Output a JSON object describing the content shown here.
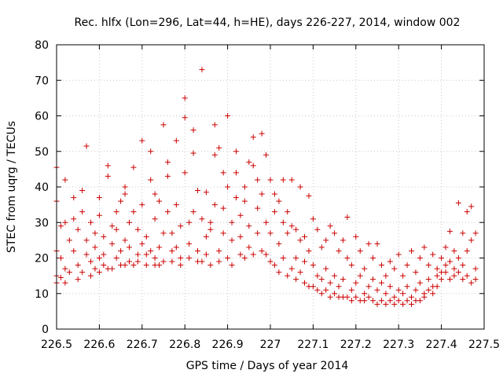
{
  "chart_data": {
    "type": "scatter",
    "title": "Rec. hlfx (Lon=296, Lat=44, h=HE), days 226-227, 2014, window 002",
    "xlabel": "GPS time / Days of year 2014",
    "ylabel": "STEC from uqrg / TECUs",
    "xlim": [
      226.5,
      227.5
    ],
    "ylim": [
      0,
      80
    ],
    "x_ticks": [
      226.5,
      226.6,
      226.7,
      226.8,
      226.9,
      227.0,
      227.1,
      227.2,
      227.3,
      227.4,
      227.5
    ],
    "x_tick_labels": [
      "226.5",
      "226.6",
      "226.7",
      "226.8",
      "226.9",
      "227",
      "227.1",
      "227.2",
      "227.3",
      "227.4",
      "227.5"
    ],
    "y_ticks": [
      0,
      10,
      20,
      30,
      40,
      50,
      60,
      70,
      80
    ],
    "y_tick_labels": [
      "0",
      "10",
      "20",
      "30",
      "40",
      "50",
      "60",
      "70",
      "80"
    ],
    "grid": true,
    "marker": "plus",
    "color": "#cc0000",
    "series": [
      {
        "points": [
          [
            226.5,
            13
          ],
          [
            226.5,
            15
          ],
          [
            226.5,
            22
          ],
          [
            226.5,
            36
          ],
          [
            226.5,
            45.5
          ],
          [
            226.51,
            14.5
          ],
          [
            226.51,
            20
          ],
          [
            226.51,
            29
          ],
          [
            226.52,
            42
          ],
          [
            226.52,
            30
          ],
          [
            226.52,
            17
          ],
          [
            226.52,
            13
          ],
          [
            226.53,
            25
          ],
          [
            226.53,
            16
          ],
          [
            226.54,
            31
          ],
          [
            226.54,
            37
          ],
          [
            226.54,
            22
          ],
          [
            226.55,
            14
          ],
          [
            226.55,
            18
          ],
          [
            226.55,
            28
          ],
          [
            226.56,
            39
          ],
          [
            226.56,
            33
          ],
          [
            226.56,
            16
          ],
          [
            226.57,
            21
          ],
          [
            226.57,
            25
          ],
          [
            226.57,
            51.5
          ],
          [
            226.58,
            15
          ],
          [
            226.58,
            19
          ],
          [
            226.58,
            30
          ],
          [
            226.59,
            17
          ],
          [
            226.59,
            23
          ],
          [
            226.59,
            27
          ],
          [
            226.6,
            16
          ],
          [
            226.6,
            20
          ],
          [
            226.6,
            32
          ],
          [
            226.6,
            37
          ],
          [
            226.61,
            18
          ],
          [
            226.61,
            21
          ],
          [
            226.61,
            26
          ],
          [
            226.62,
            46
          ],
          [
            226.62,
            43
          ],
          [
            226.62,
            17
          ],
          [
            226.63,
            29
          ],
          [
            226.63,
            24
          ],
          [
            226.63,
            17
          ],
          [
            226.64,
            20
          ],
          [
            226.64,
            28
          ],
          [
            226.64,
            33
          ],
          [
            226.65,
            18
          ],
          [
            226.65,
            22
          ],
          [
            226.65,
            36
          ],
          [
            226.66,
            38
          ],
          [
            226.66,
            40
          ],
          [
            226.66,
            25
          ],
          [
            226.66,
            18
          ],
          [
            226.67,
            19
          ],
          [
            226.67,
            23
          ],
          [
            226.67,
            30
          ],
          [
            226.68,
            45.5
          ],
          [
            226.68,
            33
          ],
          [
            226.68,
            18
          ],
          [
            226.69,
            19
          ],
          [
            226.69,
            21
          ],
          [
            226.69,
            28
          ],
          [
            226.7,
            24
          ],
          [
            226.7,
            35
          ],
          [
            226.7,
            53
          ],
          [
            226.71,
            18
          ],
          [
            226.71,
            21
          ],
          [
            226.71,
            26
          ],
          [
            226.72,
            42
          ],
          [
            226.72,
            50
          ],
          [
            226.72,
            22
          ],
          [
            226.73,
            18
          ],
          [
            226.73,
            20
          ],
          [
            226.73,
            31
          ],
          [
            226.73,
            38
          ],
          [
            226.74,
            36
          ],
          [
            226.74,
            23
          ],
          [
            226.74,
            18
          ],
          [
            226.75,
            19
          ],
          [
            226.75,
            27
          ],
          [
            226.75,
            57.5
          ],
          [
            226.76,
            33
          ],
          [
            226.76,
            47
          ],
          [
            226.76,
            43
          ],
          [
            226.77,
            19
          ],
          [
            226.77,
            22
          ],
          [
            226.77,
            27
          ],
          [
            226.78,
            35
          ],
          [
            226.78,
            53
          ],
          [
            226.78,
            23
          ],
          [
            226.79,
            18
          ],
          [
            226.79,
            20
          ],
          [
            226.79,
            29
          ],
          [
            226.8,
            59.5
          ],
          [
            226.8,
            65
          ],
          [
            226.8,
            44
          ],
          [
            226.81,
            20
          ],
          [
            226.81,
            24
          ],
          [
            226.81,
            30
          ],
          [
            226.82,
            33
          ],
          [
            226.82,
            49.5
          ],
          [
            226.82,
            56
          ],
          [
            226.83,
            19
          ],
          [
            226.83,
            22
          ],
          [
            226.83,
            39
          ],
          [
            226.84,
            73
          ],
          [
            226.84,
            31
          ],
          [
            226.84,
            19
          ],
          [
            226.85,
            38.5
          ],
          [
            226.85,
            26
          ],
          [
            226.85,
            21
          ],
          [
            226.86,
            18
          ],
          [
            226.86,
            30
          ],
          [
            226.86,
            28
          ],
          [
            226.87,
            57.5
          ],
          [
            226.87,
            49
          ],
          [
            226.87,
            35
          ],
          [
            226.88,
            51
          ],
          [
            226.88,
            22
          ],
          [
            226.88,
            19
          ],
          [
            226.89,
            44
          ],
          [
            226.89,
            34
          ],
          [
            226.89,
            27
          ],
          [
            226.9,
            60
          ],
          [
            226.9,
            40
          ],
          [
            226.9,
            20
          ],
          [
            226.91,
            30
          ],
          [
            226.91,
            25
          ],
          [
            226.91,
            18
          ],
          [
            226.92,
            44
          ],
          [
            226.92,
            50
          ],
          [
            226.92,
            37
          ],
          [
            226.93,
            21
          ],
          [
            226.93,
            26
          ],
          [
            226.93,
            32
          ],
          [
            226.94,
            40
          ],
          [
            226.94,
            36
          ],
          [
            226.94,
            20
          ],
          [
            226.95,
            47
          ],
          [
            226.95,
            29
          ],
          [
            226.95,
            23
          ],
          [
            226.96,
            54
          ],
          [
            226.96,
            46
          ],
          [
            226.96,
            21
          ],
          [
            226.97,
            42
          ],
          [
            226.97,
            34
          ],
          [
            226.97,
            27
          ],
          [
            226.98,
            55
          ],
          [
            226.98,
            38
          ],
          [
            226.98,
            22
          ],
          [
            226.99,
            49
          ],
          [
            226.99,
            30
          ],
          [
            226.99,
            21
          ],
          [
            227.0,
            42
          ],
          [
            227.0,
            27
          ],
          [
            227.0,
            19
          ],
          [
            227.01,
            38
          ],
          [
            227.01,
            33
          ],
          [
            227.01,
            18
          ],
          [
            227.02,
            36
          ],
          [
            227.02,
            24
          ],
          [
            227.02,
            16
          ],
          [
            227.03,
            42
          ],
          [
            227.03,
            30
          ],
          [
            227.03,
            20
          ],
          [
            227.04,
            33
          ],
          [
            227.04,
            27
          ],
          [
            227.04,
            15
          ],
          [
            227.05,
            42
          ],
          [
            227.05,
            29
          ],
          [
            227.05,
            17
          ],
          [
            227.06,
            28
          ],
          [
            227.06,
            20
          ],
          [
            227.06,
            14
          ],
          [
            227.07,
            40
          ],
          [
            227.07,
            25
          ],
          [
            227.07,
            16
          ],
          [
            227.08,
            26
          ],
          [
            227.08,
            19
          ],
          [
            227.08,
            13
          ],
          [
            227.09,
            37.5
          ],
          [
            227.09,
            22
          ],
          [
            227.09,
            12
          ],
          [
            227.1,
            31
          ],
          [
            227.1,
            18
          ],
          [
            227.1,
            12
          ],
          [
            227.11,
            28
          ],
          [
            227.11,
            15
          ],
          [
            227.11,
            11
          ],
          [
            227.12,
            23
          ],
          [
            227.12,
            14
          ],
          [
            227.12,
            10
          ],
          [
            227.13,
            25
          ],
          [
            227.13,
            17
          ],
          [
            227.13,
            11
          ],
          [
            227.14,
            29
          ],
          [
            227.14,
            13
          ],
          [
            227.14,
            9
          ],
          [
            227.15,
            27
          ],
          [
            227.15,
            15
          ],
          [
            227.15,
            10
          ],
          [
            227.16,
            22
          ],
          [
            227.16,
            12
          ],
          [
            227.16,
            9
          ],
          [
            227.17,
            25
          ],
          [
            227.17,
            14
          ],
          [
            227.17,
            9
          ],
          [
            227.18,
            31.5
          ],
          [
            227.18,
            20
          ],
          [
            227.18,
            9
          ],
          [
            227.19,
            18
          ],
          [
            227.19,
            11
          ],
          [
            227.19,
            8
          ],
          [
            227.2,
            26
          ],
          [
            227.2,
            13
          ],
          [
            227.2,
            9
          ],
          [
            227.21,
            22
          ],
          [
            227.21,
            15
          ],
          [
            227.21,
            8
          ],
          [
            227.22,
            17
          ],
          [
            227.22,
            10
          ],
          [
            227.22,
            8
          ],
          [
            227.23,
            24
          ],
          [
            227.23,
            12
          ],
          [
            227.23,
            9
          ],
          [
            227.24,
            20
          ],
          [
            227.24,
            14
          ],
          [
            227.24,
            8
          ],
          [
            227.25,
            24
          ],
          [
            227.25,
            11
          ],
          [
            227.25,
            7
          ],
          [
            227.26,
            18
          ],
          [
            227.26,
            13
          ],
          [
            227.26,
            8
          ],
          [
            227.27,
            15
          ],
          [
            227.27,
            10
          ],
          [
            227.27,
            7
          ],
          [
            227.28,
            19
          ],
          [
            227.28,
            12
          ],
          [
            227.28,
            8
          ],
          [
            227.29,
            17
          ],
          [
            227.29,
            9
          ],
          [
            227.29,
            7
          ],
          [
            227.3,
            21
          ],
          [
            227.3,
            11
          ],
          [
            227.3,
            8
          ],
          [
            227.31,
            15
          ],
          [
            227.31,
            10
          ],
          [
            227.31,
            7
          ],
          [
            227.32,
            18
          ],
          [
            227.32,
            12
          ],
          [
            227.32,
            8
          ],
          [
            227.33,
            22
          ],
          [
            227.33,
            9
          ],
          [
            227.33,
            7
          ],
          [
            227.34,
            16
          ],
          [
            227.34,
            11
          ],
          [
            227.34,
            8
          ],
          [
            227.35,
            20
          ],
          [
            227.35,
            13
          ],
          [
            227.35,
            8
          ],
          [
            227.36,
            23
          ],
          [
            227.36,
            10
          ],
          [
            227.36,
            9
          ],
          [
            227.37,
            18
          ],
          [
            227.37,
            14
          ],
          [
            227.37,
            11
          ],
          [
            227.38,
            21
          ],
          [
            227.38,
            12
          ],
          [
            227.38,
            10
          ],
          [
            227.39,
            17
          ],
          [
            227.39,
            15
          ],
          [
            227.39,
            12
          ],
          [
            227.4,
            20
          ],
          [
            227.4,
            16
          ],
          [
            227.4,
            14
          ],
          [
            227.41,
            23
          ],
          [
            227.41,
            18
          ],
          [
            227.41,
            16
          ],
          [
            227.42,
            27.5
          ],
          [
            227.42,
            19
          ],
          [
            227.42,
            14
          ],
          [
            227.43,
            22
          ],
          [
            227.43,
            17
          ],
          [
            227.43,
            15
          ],
          [
            227.44,
            35.5
          ],
          [
            227.44,
            20
          ],
          [
            227.44,
            16
          ],
          [
            227.45,
            27
          ],
          [
            227.45,
            18
          ],
          [
            227.45,
            14
          ],
          [
            227.46,
            33
          ],
          [
            227.46,
            22
          ],
          [
            227.46,
            15
          ],
          [
            227.47,
            34.5
          ],
          [
            227.47,
            25
          ],
          [
            227.47,
            13
          ],
          [
            227.48,
            27
          ],
          [
            227.48,
            17
          ],
          [
            227.48,
            14
          ]
        ]
      }
    ]
  }
}
